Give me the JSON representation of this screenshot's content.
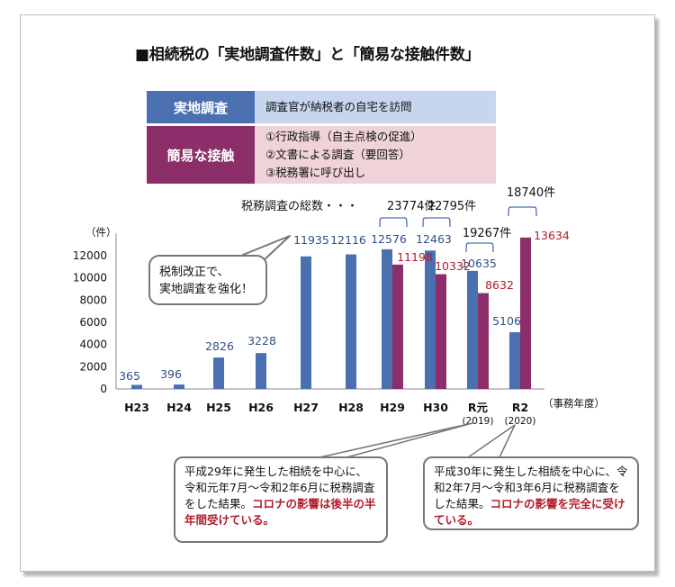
{
  "title": "■相続税の「実地調査件数」と「簡易な接触件数」",
  "legend": {
    "field_audit_label": "実地調査",
    "field_audit_desc": "調査官が納税者の自宅を訪問",
    "simple_contact_label": "簡易な接触",
    "simple_contact_items": [
      "①行政指導（自主点検の促進）",
      "②文書による調査（要回答）",
      "③税務署に呼び出し"
    ]
  },
  "colors": {
    "field_audit": "#4a70b0",
    "simple_contact": "#8c2e6a",
    "emphasis_red": "#b11c2c"
  },
  "chart_data": {
    "type": "bar",
    "categories": [
      "H23",
      "H24",
      "H25",
      "H26",
      "H27",
      "H28",
      "H29",
      "H30",
      "R元",
      "R2"
    ],
    "category_sublabels": [
      "",
      "",
      "",
      "",
      "",
      "",
      "",
      "",
      "(2019)",
      "(2020)"
    ],
    "series": [
      {
        "name": "実地調査",
        "values": [
          365,
          396,
          2826,
          3228,
          11935,
          12116,
          12576,
          12463,
          10635,
          5106
        ]
      },
      {
        "name": "簡易な接触",
        "values": [
          null,
          null,
          null,
          null,
          null,
          null,
          11198,
          10332,
          8632,
          13634
        ]
      }
    ],
    "ylabel": "（件）",
    "xlabel": "（事務年度）",
    "ylim": [
      0,
      14000
    ],
    "yticks": [
      0,
      2000,
      4000,
      6000,
      8000,
      10000,
      12000
    ],
    "totals_prefix": "税務調査の総数・・・",
    "totals": [
      {
        "category": "H29",
        "label": "23774件"
      },
      {
        "category": "H30",
        "label": "22795件"
      },
      {
        "category": "R元",
        "label": "19267件"
      },
      {
        "category": "R2",
        "label": "18740件"
      }
    ]
  },
  "callouts": {
    "reform": "税制改正で、\n実地調査を強化！",
    "r1_text": "平成29年に発生した相続を中心に、令和元年7月～令和2年6月に税務調査をした結果。",
    "r1_emph": "コロナの影響は後半の半年間受けている。",
    "r2_text": "平成30年に発生した相続を中心に、令和2年7月～令和3年6月に税務調査をした結果。",
    "r2_emph": "コロナの影響を完全に受けている。"
  }
}
